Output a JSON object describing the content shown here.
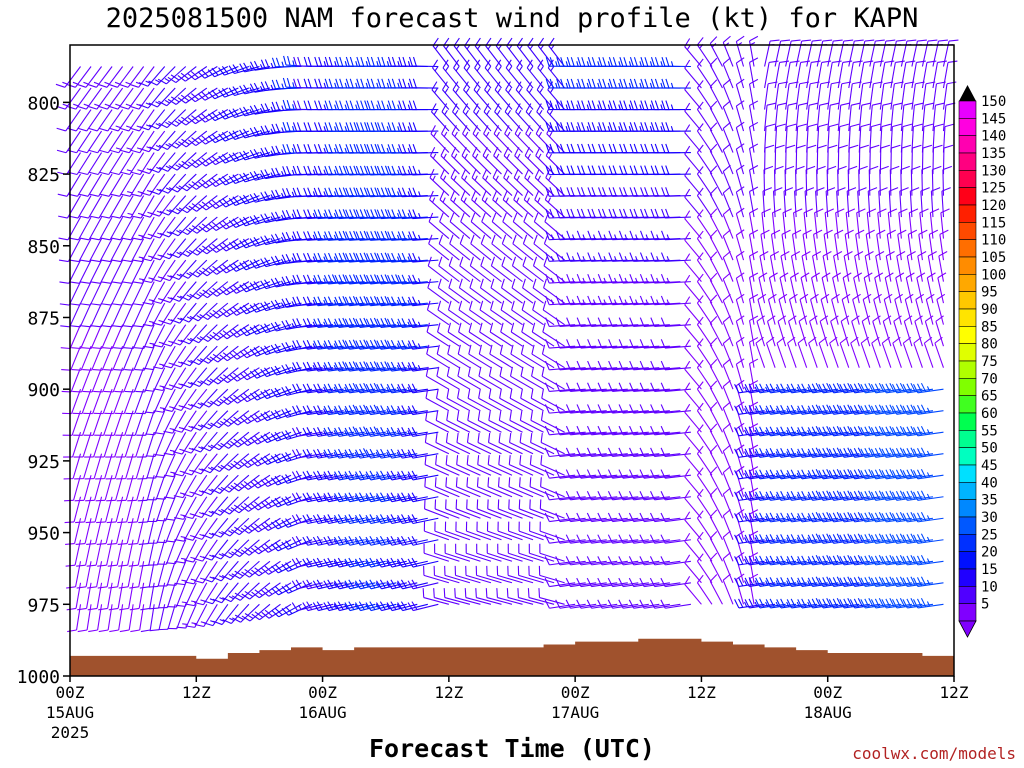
{
  "chart_data": {
    "type": "wind-barb-profile",
    "title": "2025081500 NAM forecast wind profile (kt) for KAPN",
    "xlabel": "Forecast Time (UTC)",
    "ylabel": "",
    "y_ticks": [
      "800",
      "825",
      "850",
      "875",
      "900",
      "925",
      "950",
      "975",
      "1000"
    ],
    "y_range_hpa": [
      1000,
      780
    ],
    "x_range_hours": [
      0,
      84
    ],
    "x_ticks": [
      {
        "hour": 0,
        "label": "00Z",
        "date": "15AUG",
        "year": "2025"
      },
      {
        "hour": 12,
        "label": "12Z",
        "date": "",
        "year": ""
      },
      {
        "hour": 24,
        "label": "00Z",
        "date": "16AUG",
        "year": ""
      },
      {
        "hour": 36,
        "label": "12Z",
        "date": "",
        "year": ""
      },
      {
        "hour": 48,
        "label": "00Z",
        "date": "17AUG",
        "year": ""
      },
      {
        "hour": 60,
        "label": "12Z",
        "date": "",
        "year": ""
      },
      {
        "hour": 72,
        "label": "00Z",
        "date": "18AUG",
        "year": ""
      },
      {
        "hour": 84,
        "label": "12Z",
        "date": "",
        "year": ""
      }
    ],
    "colorbar": {
      "labels": [
        "150",
        "145",
        "140",
        "135",
        "130",
        "125",
        "120",
        "115",
        "110",
        "105",
        "100",
        "95",
        "90",
        "85",
        "80",
        "75",
        "70",
        "65",
        "60",
        "55",
        "50",
        "45",
        "40",
        "35",
        "30",
        "25",
        "20",
        "15",
        "10",
        "5"
      ],
      "colors": [
        "#e800ff",
        "#ff00e0",
        "#ff00b0",
        "#ff0080",
        "#ff0050",
        "#ff0018",
        "#ff2000",
        "#ff4a00",
        "#ff6e00",
        "#ff8c00",
        "#ffa800",
        "#ffc800",
        "#ffe400",
        "#ffff00",
        "#e0ff00",
        "#b0ff00",
        "#80ff00",
        "#40ff20",
        "#00ff50",
        "#00ff90",
        "#00ffc0",
        "#00e0ff",
        "#00b4ff",
        "#0088ff",
        "#0058ff",
        "#0030ff",
        "#0010ff",
        "#2000ff",
        "#5000ff",
        "#8000ff"
      ]
    },
    "terrain_color": "#a0522d",
    "surface_pressure": [
      [
        0,
        993
      ],
      [
        9,
        993
      ],
      [
        12,
        994
      ],
      [
        15,
        992
      ],
      [
        18,
        991
      ],
      [
        21,
        990
      ],
      [
        24,
        991
      ],
      [
        27,
        990
      ],
      [
        36,
        990
      ],
      [
        42,
        990
      ],
      [
        45,
        989
      ],
      [
        48,
        988
      ],
      [
        51,
        988
      ],
      [
        54,
        987
      ],
      [
        58,
        987
      ],
      [
        60,
        988
      ],
      [
        63,
        989
      ],
      [
        66,
        990
      ],
      [
        69,
        991
      ],
      [
        72,
        992
      ],
      [
        78,
        992
      ],
      [
        81,
        993
      ],
      [
        84,
        994
      ]
    ],
    "wind_field_note": "barbs every 1 h from 975 to 780 hPa; speed in kt"
  },
  "credit": "coolwx.com/models"
}
